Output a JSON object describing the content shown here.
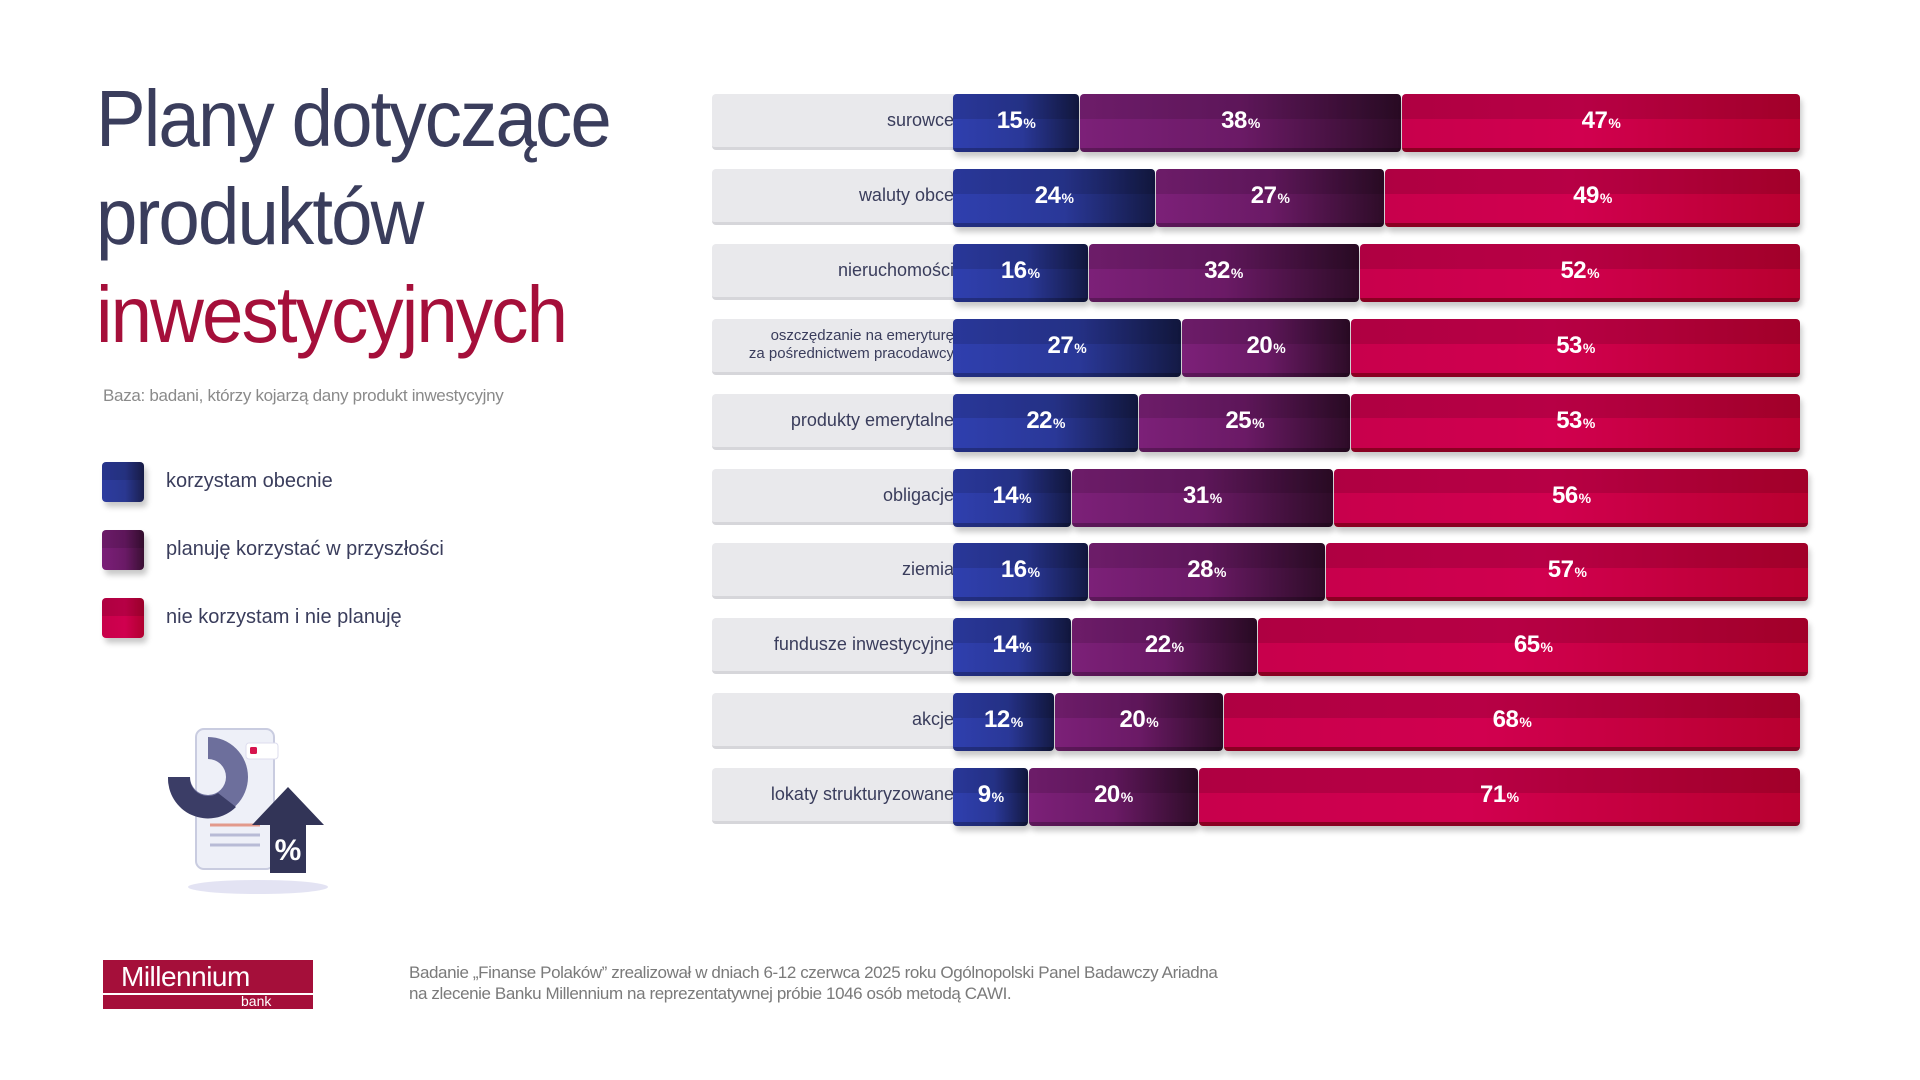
{
  "title": {
    "line1": "Plany dotyczące",
    "line2": "produktów",
    "line3": "inwestycyjnych"
  },
  "base_note": "Baza: badani, którzy kojarzą dany produkt inwestycyjny",
  "legend": [
    {
      "label": "korzystam obecnie",
      "color": "#2d3c9f"
    },
    {
      "label": "planuję korzystać w przyszłości",
      "color": "#6b1a66"
    },
    {
      "label": "nie korzystam i nie planuję",
      "color": "#cc004d"
    }
  ],
  "colors": {
    "title_dark": "#3a3d5c",
    "title_accent": "#a50f3a",
    "brand": "#a50f3a"
  },
  "chart_data": {
    "type": "bar",
    "orientation": "horizontal",
    "stacked": true,
    "title": "Plany dotyczące produktów inwestycyjnych",
    "xlabel": "",
    "ylabel": "",
    "xlim": [
      0,
      100
    ],
    "unit": "%",
    "grid": false,
    "legend_position": "left",
    "categories": [
      "surowce",
      "waluty obce",
      "nieruchomości",
      "oszczędzanie na emeryturę\nza pośrednictwem pracodawcy",
      "produkty emerytalne",
      "obligacje",
      "ziemia",
      "fundusze inwestycyjne",
      "akcje",
      "lokaty strukturyzowane"
    ],
    "series": [
      {
        "name": "korzystam obecnie",
        "values": [
          15,
          24,
          16,
          27,
          22,
          14,
          16,
          14,
          12,
          9
        ]
      },
      {
        "name": "planuję korzystać w przyszłości",
        "values": [
          38,
          27,
          32,
          20,
          25,
          31,
          28,
          22,
          20,
          20
        ]
      },
      {
        "name": "nie korzystam i nie planuję",
        "values": [
          47,
          49,
          52,
          53,
          53,
          56,
          57,
          65,
          68,
          71
        ]
      }
    ]
  },
  "footer": {
    "logo_name": "Millennium",
    "logo_sub": "bank",
    "source_line1": "Badanie „Finanse Polaków” zrealizował w dniach 6-12 czerwca 2025 roku Ogólnopolski Panel Badawczy Ariadna",
    "source_line2": "na zlecenie Banku Millennium na reprezentatywnej próbie 1046 osób metodą CAWI."
  }
}
